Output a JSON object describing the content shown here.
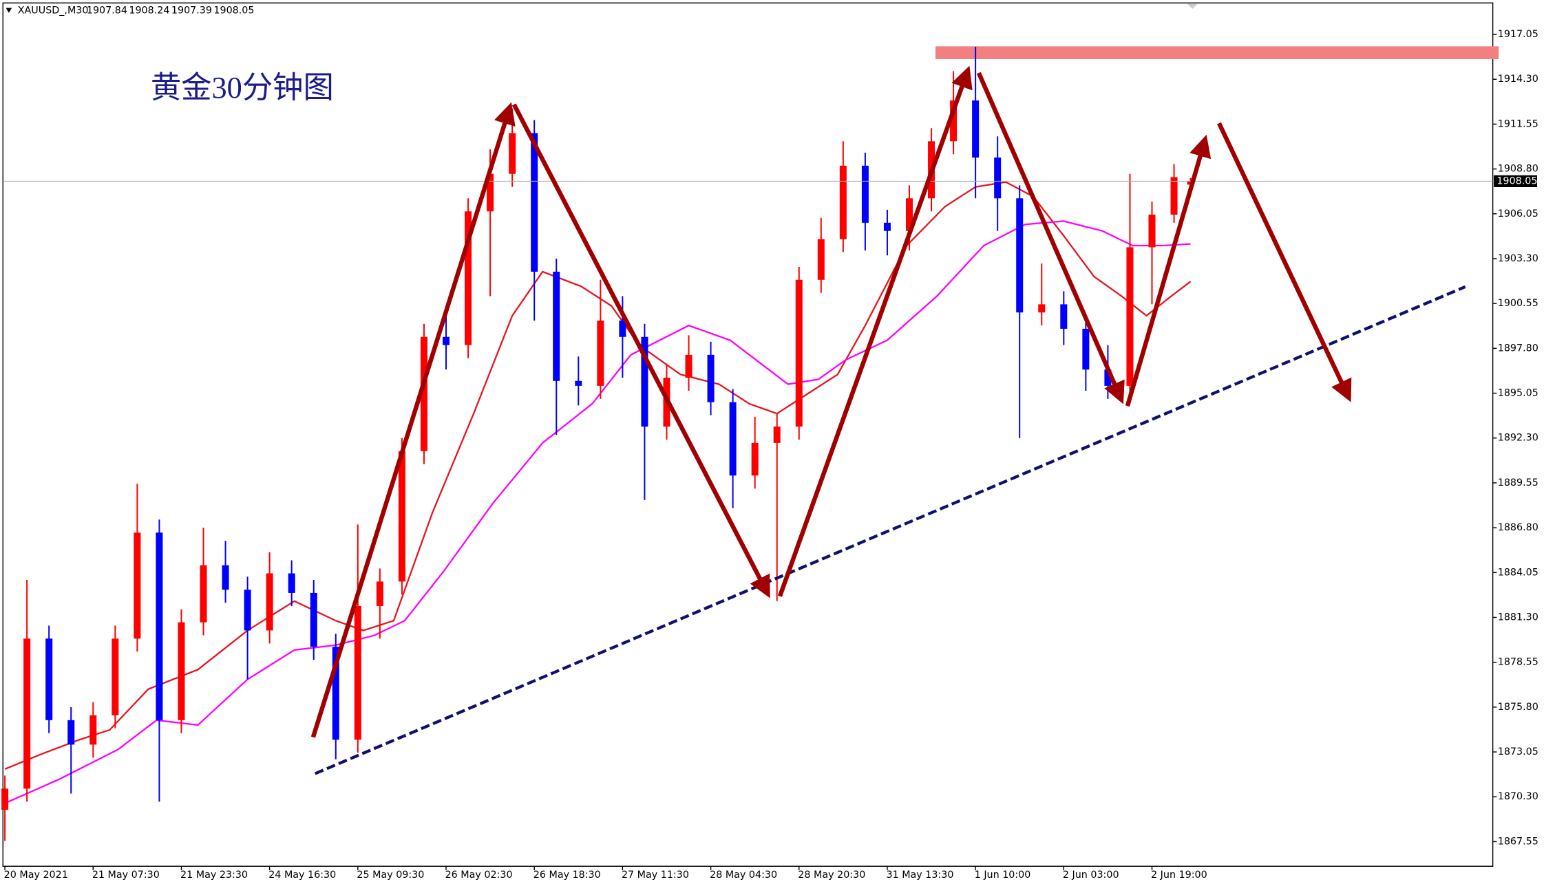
{
  "chart_data": {
    "type": "candlestick",
    "title": "黄金30分钟图",
    "symbol": "XAUUSD_,M30",
    "ohlc": [
      1907.84,
      1908.24,
      1907.39,
      1908.05
    ],
    "current_price": 1908.05,
    "up_color": "#ff0000",
    "down_color": "#0000ff",
    "x": [
      0,
      8,
      16,
      24,
      32,
      40,
      48,
      56,
      64,
      72,
      80,
      88,
      96,
      104,
      112,
      120,
      128,
      136,
      144,
      152,
      160,
      168,
      176,
      184,
      192,
      200,
      208,
      216,
      224,
      232,
      240,
      248,
      256,
      264,
      272,
      280,
      288,
      296,
      304,
      312,
      320,
      328,
      336,
      344,
      352,
      360,
      368,
      376,
      384,
      392,
      400,
      408,
      416,
      424,
      430
    ],
    "open": [
      1869.5,
      1870.8,
      1880.0,
      1875.0,
      1873.5,
      1875.3,
      1880.0,
      1886.5,
      1875.0,
      1881.0,
      1884.5,
      1883.0,
      1880.5,
      1884.0,
      1882.8,
      1879.5,
      1873.8,
      1882.0,
      1883.5,
      1891.5,
      1898.5,
      1898.0,
      1906.2,
      1908.5,
      1911.0,
      1902.5,
      1895.8,
      1895.5,
      1899.5,
      1898.5,
      1893.0,
      1896.0,
      1897.4,
      1894.5,
      1890.0,
      1892.0,
      1893.0,
      1902.0,
      1904.5,
      1909.0,
      1905.5,
      1905.0,
      1907.0,
      1910.5,
      1913.0,
      1909.5,
      1907.0,
      1900.0,
      1900.5,
      1899.0,
      1896.5,
      1895.5,
      1904.0,
      1906.0,
      1907.84
    ],
    "high": [
      1871.6,
      1883.6,
      1880.8,
      1875.8,
      1876.1,
      1880.8,
      1889.5,
      1887.3,
      1881.8,
      1886.8,
      1886.0,
      1883.8,
      1885.3,
      1884.8,
      1883.6,
      1880.3,
      1887.0,
      1884.3,
      1892.3,
      1899.3,
      1900.0,
      1907.0,
      1910.0,
      1912.5,
      1911.8,
      1903.3,
      1897.3,
      1902.0,
      1901.0,
      1899.3,
      1896.8,
      1898.6,
      1898.2,
      1895.3,
      1893.6,
      1893.8,
      1902.8,
      1905.8,
      1910.5,
      1909.8,
      1906.3,
      1907.8,
      1911.3,
      1914.8,
      1916.3,
      1910.8,
      1907.8,
      1903.0,
      1901.3,
      1899.8,
      1898.0,
      1908.5,
      1906.8,
      1909.1,
      1908.24
    ],
    "low": [
      1867.6,
      1870.0,
      1874.2,
      1870.5,
      1872.7,
      1874.5,
      1879.2,
      1870.0,
      1874.2,
      1880.2,
      1882.2,
      1877.5,
      1879.7,
      1882.0,
      1878.7,
      1872.6,
      1873.0,
      1880.0,
      1882.7,
      1890.7,
      1896.5,
      1897.2,
      1901.0,
      1907.7,
      1899.5,
      1892.5,
      1894.3,
      1894.7,
      1896.0,
      1888.5,
      1892.2,
      1895.2,
      1893.7,
      1888.0,
      1889.2,
      1882.3,
      1892.2,
      1901.2,
      1903.7,
      1903.8,
      1903.5,
      1903.8,
      1906.2,
      1909.7,
      1907.0,
      1905.0,
      1892.3,
      1899.2,
      1898.0,
      1895.2,
      1894.7,
      1894.7,
      1900.5,
      1905.5,
      1907.39
    ],
    "close": [
      1870.8,
      1880.0,
      1875.0,
      1873.5,
      1875.3,
      1880.0,
      1886.5,
      1875.0,
      1881.0,
      1884.5,
      1883.0,
      1880.5,
      1884.0,
      1882.8,
      1879.5,
      1873.8,
      1882.0,
      1883.5,
      1891.5,
      1898.5,
      1898.0,
      1906.2,
      1908.5,
      1911.0,
      1902.5,
      1895.8,
      1895.5,
      1899.5,
      1898.5,
      1893.0,
      1896.0,
      1897.4,
      1894.5,
      1890.0,
      1892.0,
      1893.0,
      1902.0,
      1904.5,
      1909.0,
      1905.5,
      1905.0,
      1907.0,
      1910.5,
      1913.0,
      1909.5,
      1907.0,
      1900.0,
      1900.5,
      1899.0,
      1896.5,
      1895.5,
      1904.0,
      1906.0,
      1908.3,
      1908.05
    ],
    "lines": [
      {
        "color": "#e8141c",
        "x": [
          0,
          13,
          27,
          38,
          52,
          70,
          88,
          105,
          120,
          130,
          141,
          155,
          170,
          184,
          195,
          209,
          220,
          230,
          245,
          259,
          270,
          280,
          291,
          302,
          312,
          327,
          341,
          352,
          363,
          373,
          384,
          395,
          405,
          414,
          423,
          430
        ],
        "values": [
          1872.0,
          1872.9,
          1873.8,
          1874.4,
          1876.9,
          1878.1,
          1880.5,
          1882.3,
          1881.1,
          1880.5,
          1881.1,
          1887.7,
          1893.8,
          1899.8,
          1902.5,
          1901.6,
          1900.4,
          1898.0,
          1896.2,
          1895.6,
          1894.4,
          1893.8,
          1895.0,
          1896.2,
          1899.2,
          1904.1,
          1906.5,
          1907.7,
          1908.0,
          1907.1,
          1904.7,
          1902.2,
          1901.0,
          1899.8,
          1901.0,
          1901.9
        ]
      },
      {
        "color": "#ff00ff",
        "x": [
          0,
          20,
          41,
          55,
          70,
          88,
          105,
          120,
          134,
          145,
          159,
          177,
          195,
          213,
          227,
          248,
          263,
          277,
          284,
          295,
          305,
          320,
          338,
          355,
          370,
          384,
          398,
          409,
          420,
          430
        ],
        "values": [
          1869.9,
          1871.4,
          1873.2,
          1875.0,
          1874.7,
          1877.5,
          1879.3,
          1879.6,
          1880.2,
          1881.1,
          1884.1,
          1888.3,
          1892.0,
          1894.4,
          1897.4,
          1899.2,
          1898.3,
          1896.5,
          1895.6,
          1895.9,
          1897.1,
          1898.3,
          1901.0,
          1904.1,
          1905.4,
          1905.6,
          1905.0,
          1904.1,
          1904.1,
          1904.2
        ]
      }
    ],
    "xlim": [
      -0.7,
      539.6
    ],
    "ylim": [
      1866.04,
      1918.98
    ],
    "xticks": [
      {
        "value": 0,
        "label": "20 May 2021"
      },
      {
        "value": 32,
        "label": "21 May 07:30"
      },
      {
        "value": 64,
        "label": "21 May 23:30"
      },
      {
        "value": 96,
        "label": "24 May 16:30"
      },
      {
        "value": 128,
        "label": "25 May 09:30"
      },
      {
        "value": 160,
        "label": "26 May 02:30"
      },
      {
        "value": 192,
        "label": "26 May 18:30"
      },
      {
        "value": 224,
        "label": "27 May 11:30"
      },
      {
        "value": 256,
        "label": "28 May 04:30"
      },
      {
        "value": 288,
        "label": "28 May 20:30"
      },
      {
        "value": 320,
        "label": "31 May 13:30"
      },
      {
        "value": 352,
        "label": "1 Jun 10:00"
      },
      {
        "value": 384,
        "label": "2 Jun 03:00"
      },
      {
        "value": 416,
        "label": "2 Jun 19:00"
      }
    ],
    "yticks": [
      1917.05,
      {
        "value": 1914.3,
        "label": "1914.30"
      },
      1911.55,
      {
        "value": 1908.8,
        "label": "1908.80"
      },
      1906.05,
      {
        "value": 1903.3,
        "label": "1903.30"
      },
      1900.55,
      {
        "value": 1897.8,
        "label": "1897.80"
      },
      1895.05,
      {
        "value": 1892.3,
        "label": "1892.30"
      },
      1889.55,
      {
        "value": 1886.8,
        "label": "1886.80"
      },
      1884.05,
      {
        "value": 1881.3,
        "label": "1881.30"
      },
      1878.55,
      {
        "value": 1875.8,
        "label": "1875.80"
      },
      1873.05,
      {
        "value": 1870.3,
        "label": "1870.30"
      },
      1867.55
    ]
  }
}
